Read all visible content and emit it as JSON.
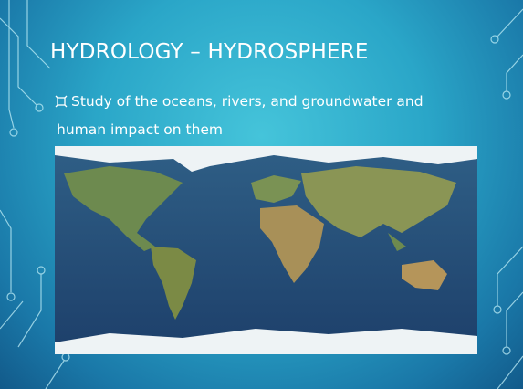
{
  "slide": {
    "title": "HYDROLOGY – HYDROSPHERE",
    "bullets": [
      "Study of the oceans, rivers, and groundwater and human impact on them"
    ]
  }
}
